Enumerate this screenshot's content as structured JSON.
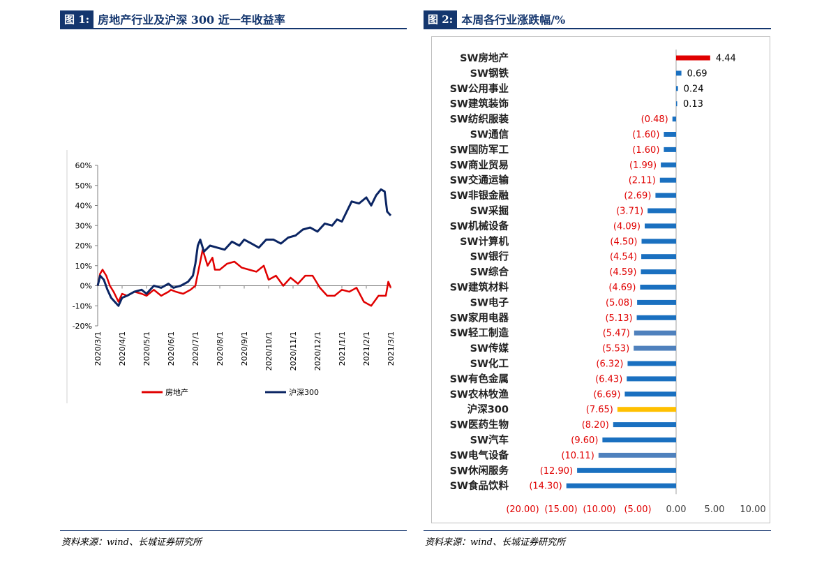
{
  "left_figure": {
    "tag": "图 1:",
    "title": "房地产行业及沪深 300 近一年收益率",
    "source": "资料来源：wind、长城证券研究所"
  },
  "right_figure": {
    "tag": "图 2:",
    "title": "本周各行业涨跌幅/%",
    "source": "资料来源：wind、长城证券研究所"
  },
  "chart_data": [
    {
      "type": "line",
      "x_ticks": [
        "2020/3/1",
        "2020/4/1",
        "2020/5/1",
        "2020/6/1",
        "2020/7/1",
        "2020/8/1",
        "2020/9/1",
        "2020/10/1",
        "2020/11/1",
        "2020/12/1",
        "2021/1/1",
        "2021/2/1",
        "2021/3/1"
      ],
      "y_ticks": [
        "60%",
        "50%",
        "40%",
        "30%",
        "20%",
        "10%",
        "0%",
        "-10%",
        "-20%"
      ],
      "ylim": [
        -20,
        60
      ],
      "legend_position": "bottom",
      "series": [
        {
          "name": "房地产",
          "color": "#e00000",
          "x": [
            0,
            0.1,
            0.2,
            0.35,
            0.5,
            0.65,
            0.85,
            1.0,
            1.2,
            1.5,
            1.8,
            2.0,
            2.3,
            2.6,
            2.9,
            3.0,
            3.2,
            3.5,
            3.8,
            4.0,
            4.1,
            4.3,
            4.5,
            4.7,
            4.8,
            5.0,
            5.3,
            5.6,
            5.9,
            6.2,
            6.5,
            6.8,
            7.0,
            7.3,
            7.6,
            7.9,
            8.2,
            8.5,
            8.8,
            9.1,
            9.4,
            9.7,
            10.0,
            10.3,
            10.6,
            10.9,
            11.2,
            11.5,
            11.8,
            11.9,
            12.0
          ],
          "values": [
            0,
            6,
            8,
            5,
            0,
            -3,
            -8,
            -4,
            -5,
            -3,
            -4,
            -5,
            -2,
            -5,
            -3,
            -2,
            -3,
            -4,
            -2,
            0,
            6,
            18,
            10,
            14,
            8,
            8,
            11,
            12,
            9,
            8,
            7,
            10,
            3,
            5,
            0,
            4,
            1,
            5,
            5,
            -1,
            -5,
            -5,
            -2,
            -3,
            -1,
            -8,
            -10,
            -5,
            -5,
            2,
            -1
          ]
        },
        {
          "name": "沪深300",
          "color": "#0b2563",
          "x": [
            0,
            0.1,
            0.25,
            0.4,
            0.55,
            0.7,
            0.85,
            1.0,
            1.2,
            1.5,
            1.8,
            2.0,
            2.3,
            2.6,
            2.9,
            3.1,
            3.4,
            3.7,
            3.9,
            4.0,
            4.1,
            4.2,
            4.35,
            4.6,
            4.9,
            5.2,
            5.5,
            5.8,
            6.0,
            6.3,
            6.6,
            6.9,
            7.2,
            7.5,
            7.8,
            8.1,
            8.4,
            8.7,
            9.0,
            9.3,
            9.6,
            9.8,
            10.0,
            10.2,
            10.4,
            10.7,
            11.0,
            11.2,
            11.4,
            11.6,
            11.75,
            11.85,
            12.0
          ],
          "values": [
            0,
            5,
            3,
            -2,
            -6,
            -8,
            -10,
            -6,
            -5,
            -3,
            -2,
            -4,
            0,
            -1,
            1,
            -1,
            0,
            2,
            5,
            11,
            20,
            23,
            17,
            20,
            19,
            18,
            22,
            20,
            23,
            21,
            19,
            23,
            23,
            21,
            24,
            25,
            28,
            29,
            27,
            31,
            30,
            33,
            32,
            37,
            42,
            41,
            44,
            40,
            45,
            48,
            47,
            37,
            35
          ]
        }
      ]
    },
    {
      "type": "bar",
      "orientation": "horizontal",
      "xlim": [
        -20,
        10
      ],
      "x_ticks": [
        -20,
        -15,
        -10,
        -5,
        0,
        5,
        10
      ],
      "x_tick_labels": [
        "(20.00)",
        "(15.00)",
        "(10.00)",
        "(5.00)",
        "0.00",
        "5.00",
        "10.00"
      ],
      "positive_label_color": "#000000",
      "negative_label_color": "#e00000",
      "categories": [
        "SW房地产",
        "SW钢铁",
        "SW公用事业",
        "SW建筑装饰",
        "SW纺织服装",
        "SW通信",
        "SW国防军工",
        "SW商业贸易",
        "SW交通运输",
        "SW非银金融",
        "SW采掘",
        "SW机械设备",
        "SW计算机",
        "SW银行",
        "SW综合",
        "SW建筑材料",
        "SW电子",
        "SW家用电器",
        "SW轻工制造",
        "SW传媒",
        "SW化工",
        "SW有色金属",
        "SW农林牧渔",
        "沪深300",
        "SW医药生物",
        "SW汽车",
        "SW电气设备",
        "SW休闲服务",
        "SW食品饮料"
      ],
      "values": [
        4.44,
        0.69,
        0.24,
        0.13,
        -0.48,
        -1.6,
        -1.6,
        -1.99,
        -2.11,
        -2.69,
        -3.71,
        -4.09,
        -4.5,
        -4.54,
        -4.59,
        -4.69,
        -5.08,
        -5.13,
        -5.47,
        -5.53,
        -6.32,
        -6.43,
        -6.69,
        -7.65,
        -8.2,
        -9.6,
        -10.11,
        -12.9,
        -14.3
      ],
      "value_labels": [
        "4.44",
        "0.69",
        "0.24",
        "0.13",
        "(0.48)",
        "(1.60)",
        "(1.60)",
        "(1.99)",
        "(2.11)",
        "(2.69)",
        "(3.71)",
        "(4.09)",
        "(4.50)",
        "(4.54)",
        "(4.59)",
        "(4.69)",
        "(5.08)",
        "(5.13)",
        "(5.47)",
        "(5.53)",
        "(6.32)",
        "(6.43)",
        "(6.69)",
        "(7.65)",
        "(8.20)",
        "(9.60)",
        "(10.11)",
        "(12.90)",
        "(14.30)"
      ],
      "bar_colors": [
        "#e00000",
        "#1a70c0",
        "#1a70c0",
        "#1a70c0",
        "#1a70c0",
        "#1a70c0",
        "#1a70c0",
        "#1a70c0",
        "#1a70c0",
        "#1a70c0",
        "#1a70c0",
        "#1a70c0",
        "#1a70c0",
        "#1a70c0",
        "#1a70c0",
        "#1a70c0",
        "#1a70c0",
        "#1a70c0",
        "#4f81bd",
        "#4f81bd",
        "#1a70c0",
        "#1a70c0",
        "#1a70c0",
        "#ffc000",
        "#1a70c0",
        "#1a70c0",
        "#4f81bd",
        "#1a70c0",
        "#1a70c0"
      ]
    }
  ]
}
